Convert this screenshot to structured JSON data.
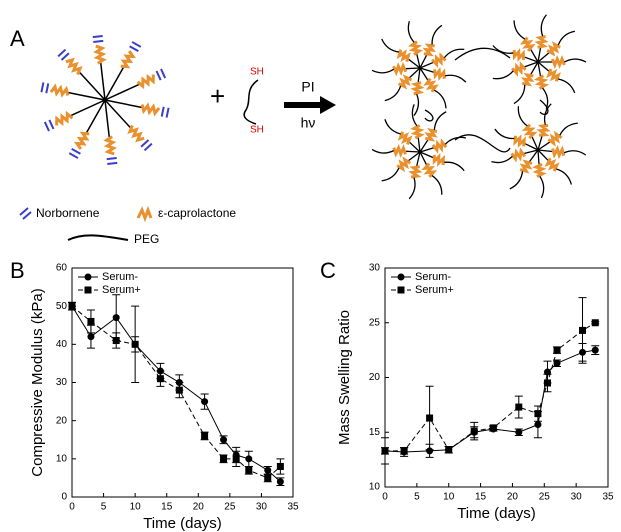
{
  "panel_a": {
    "label": "A",
    "thiol_top": "SH",
    "thiol_bottom": "SH",
    "initiator": "PI",
    "light": "hν",
    "legend": {
      "norbornene": "Norbornene",
      "caprolactone": "ε-caprolactone",
      "peg": "PEG"
    }
  },
  "chart_data": [
    {
      "type": "line",
      "label": "B",
      "xlabel": "Time (days)",
      "ylabel": "Compressive Modulus (kPa)",
      "x": [
        0,
        3,
        7,
        10,
        14,
        17,
        21,
        24,
        26,
        28,
        31,
        33
      ],
      "xlim": [
        0,
        35
      ],
      "xticks": [
        0,
        5,
        10,
        15,
        20,
        25,
        30,
        35
      ],
      "ylim": [
        0,
        60
      ],
      "yticks": [
        0,
        10,
        20,
        30,
        40,
        50,
        60
      ],
      "legend": "upper left",
      "series": [
        {
          "name": "Serum-",
          "color": "#000000",
          "marker": "circle",
          "line_style": "solid",
          "values": [
            50,
            42,
            47,
            40,
            33,
            30,
            25,
            15,
            11,
            10,
            7,
            4
          ],
          "errors": [
            1,
            3,
            6,
            10,
            2,
            2,
            2,
            1,
            2,
            2,
            1,
            1
          ]
        },
        {
          "name": "Serum+",
          "color": "#000000",
          "marker": "square",
          "line_style": "dashed",
          "values": [
            50,
            46,
            41,
            40,
            31,
            28,
            16,
            10,
            10,
            7,
            5,
            8
          ],
          "errors": [
            1,
            3,
            2,
            2,
            2,
            2,
            1,
            1,
            2,
            1,
            1,
            2
          ]
        }
      ]
    },
    {
      "type": "line",
      "label": "C",
      "xlabel": "Time (days)",
      "ylabel": "Mass Swelling Ratio",
      "x": [
        0,
        3,
        7,
        10,
        14,
        17,
        21,
        24,
        25.5,
        27,
        31,
        33
      ],
      "xlim": [
        0,
        35
      ],
      "xticks": [
        0,
        5,
        10,
        15,
        20,
        25,
        30,
        35
      ],
      "ylim": [
        10,
        30
      ],
      "yticks": [
        10,
        15,
        20,
        25,
        30
      ],
      "legend": "upper left",
      "series": [
        {
          "name": "Serum-",
          "color": "#000000",
          "marker": "circle",
          "line_style": "solid",
          "values": [
            13.3,
            13.2,
            13.3,
            13.4,
            15,
            15.3,
            15,
            15.7,
            20.5,
            21.3,
            22.3,
            22.5
          ],
          "errors": [
            1.2,
            0.4,
            0.6,
            0.3,
            0.5,
            0.2,
            0.3,
            1.2,
            1,
            0.3,
            0.8,
            0.4
          ]
        },
        {
          "name": "Serum+",
          "color": "#000000",
          "marker": "square",
          "line_style": "dashed",
          "values": [
            13.3,
            13.3,
            16.3,
            13.4,
            15.1,
            15.4,
            17.3,
            16.7,
            19.5,
            22.5,
            24.3,
            25
          ],
          "errors": [
            0.3,
            0.3,
            2.9,
            0.3,
            0.8,
            0.2,
            1,
            0.7,
            0.8,
            0.3,
            3,
            0.1
          ]
        }
      ]
    }
  ]
}
